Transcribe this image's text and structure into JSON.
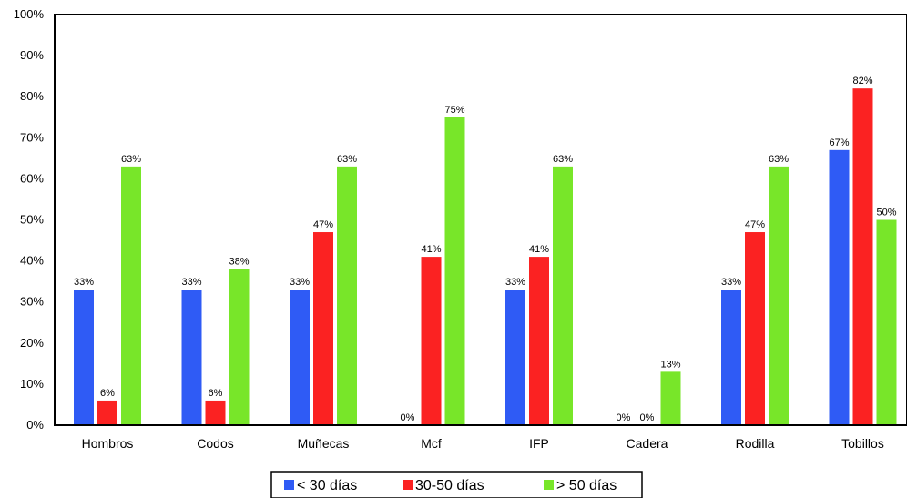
{
  "chart_data": {
    "type": "bar",
    "title": "",
    "xlabel": "",
    "ylabel": "",
    "ylim": [
      0,
      100
    ],
    "ytick_labels": [
      "0%",
      "10%",
      "20%",
      "30%",
      "40%",
      "50%",
      "60%",
      "70%",
      "80%",
      "90%",
      "100%"
    ],
    "categories": [
      "Hombros",
      "Codos",
      "Muñecas",
      "Mcf",
      "IFP",
      "Cadera",
      "Rodilla",
      "Tobillos"
    ],
    "series": [
      {
        "name": "< 30 días",
        "color": "#2f5bf5",
        "values": [
          33,
          33,
          33,
          0,
          33,
          0,
          33,
          67
        ]
      },
      {
        "name": "30-50 días",
        "color": "#fb2222",
        "values": [
          6,
          6,
          47,
          41,
          41,
          0,
          47,
          82
        ]
      },
      {
        "name": "> 50 días",
        "color": "#78e629",
        "values": [
          63,
          38,
          63,
          75,
          63,
          13,
          63,
          50
        ]
      }
    ],
    "data_labels": [
      [
        "33%",
        "33%",
        "33%",
        "0%",
        "33%",
        "0%",
        "33%",
        "67%"
      ],
      [
        "6%",
        "6%",
        "47%",
        "41%",
        "41%",
        "0%",
        "47%",
        "82%"
      ],
      [
        "63%",
        "38%",
        "63%",
        "75%",
        "63%",
        "13%",
        "63%",
        "50%"
      ]
    ],
    "grid": false,
    "legend": "bottom"
  }
}
